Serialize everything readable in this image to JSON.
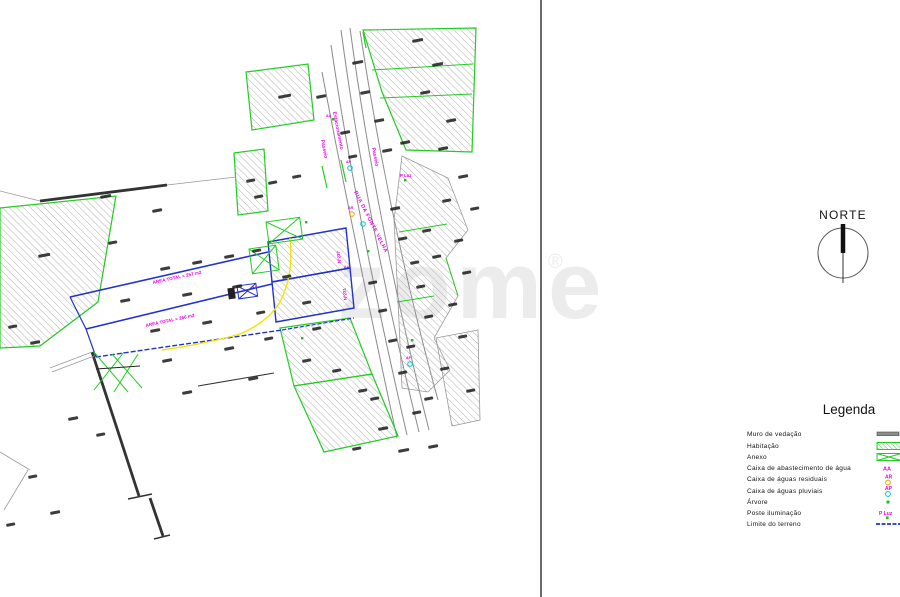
{
  "watermark": {
    "text": "zome",
    "reg": "®"
  },
  "compass": {
    "label": "NORTE"
  },
  "legend": {
    "title": "Legenda",
    "items": [
      {
        "label": "Muro de vedação",
        "symbol": "gray-wall-bar"
      },
      {
        "label": "Habitação",
        "symbol": "green-hatched-rect"
      },
      {
        "label": "Anexo",
        "symbol": "green-crossed-rect"
      },
      {
        "label": "Caixa de abastecimento de água",
        "symbol": "AA",
        "symbol_text": "AA"
      },
      {
        "label": "Caixa de águas residuais",
        "symbol": "AR-orange-circle",
        "symbol_text": "AR"
      },
      {
        "label": "Caixa de águas pluviais",
        "symbol": "AP-cyan-circle",
        "symbol_text": "AP"
      },
      {
        "label": "Árvore",
        "symbol": "green-dot"
      },
      {
        "label": "Poste iluminação",
        "symbol": "P-Luz-green-dot",
        "symbol_text": "P Luz"
      },
      {
        "label": "Limite do terreno",
        "symbol": "blue-dashed-line"
      }
    ]
  },
  "map": {
    "street_labels": {
      "passeio": "Passeio",
      "estacionamento": "Estacionamento",
      "street_name": "RUA DA FONTE VELHA"
    },
    "parcel_labels": {
      "area1": "AREA TOTAL = 257 m2",
      "area2": "AREA TOTAL = 266 m2",
      "house1": "Nº237",
      "house2": "Nº231"
    },
    "symbols": {
      "aa": "AA",
      "ar": "AR",
      "ap": "AP",
      "p_luz": "P Luz"
    },
    "colors": {
      "habitacao_outline": "#22cc22",
      "limite_terreno": "#2233cc",
      "annotation_magenta": "#e800e8",
      "survey_yellow": "#f2e400",
      "hatch_gray": "#b5b5b5",
      "road_gray": "#8a8a8a",
      "muro_dark": "#333333",
      "watermark_gray": "#ececec",
      "caixa_residuais_circle": "#f0a000",
      "caixa_pluviais_circle": "#00c8c8"
    }
  }
}
